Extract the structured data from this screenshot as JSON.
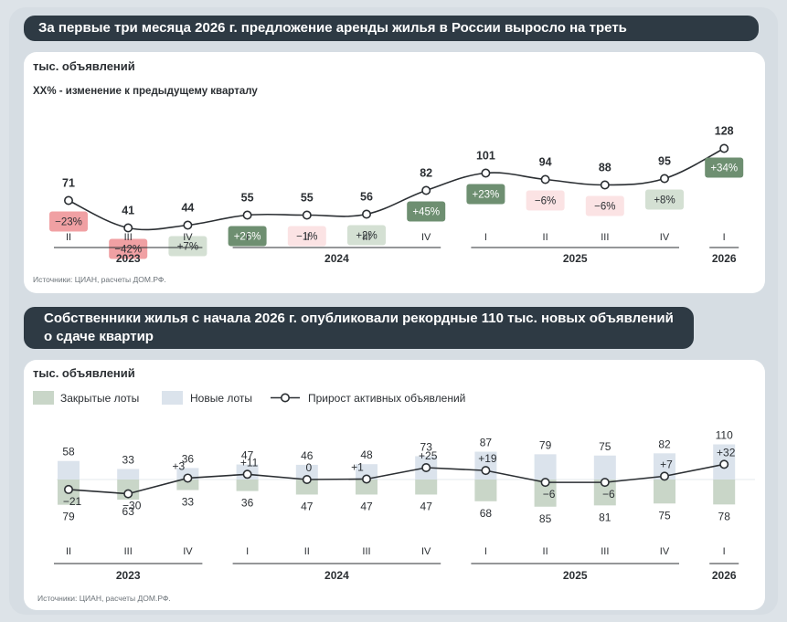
{
  "panel1": {
    "banner": "За первые три месяца 2026 г. предложение аренды жилья в России выросло на треть",
    "unit_label": "тыс. объявлений",
    "legend_note": "XX% - изменение к предыдущему кварталу",
    "source": "Источники: ЦИАН, расчеты ДОМ.РФ."
  },
  "panel2": {
    "banner_line1": "Собственники жилья с начала 2026 г. опубликовали рекордные 110 тыс. новых объявлений",
    "banner_line2": "о сдаче квартир",
    "unit_label": "тыс. объявлений",
    "source": "Источники: ЦИАН, расчеты ДОМ.РФ."
  },
  "colors": {
    "banner_bg": "#2e3a44",
    "line": "#2b2f33",
    "closed_lots": "#c9d6c8",
    "new_lots": "#dbe3ec",
    "pos_strong": "#6e8f71",
    "pos_light": "#d4e0d3",
    "neg_strong": "#f0a0a3",
    "neg_light": "#fbe3e4"
  },
  "chart_data": [
    {
      "type": "line",
      "quarters": [
        "II",
        "III",
        "IV",
        "I",
        "II",
        "III",
        "IV",
        "I",
        "II",
        "III",
        "IV",
        "I"
      ],
      "years": [
        {
          "label": "2023",
          "span": [
            0,
            2
          ]
        },
        {
          "label": "2024",
          "span": [
            3,
            6
          ]
        },
        {
          "label": "2025",
          "span": [
            7,
            10
          ]
        },
        {
          "label": "2026",
          "span": [
            11,
            11
          ]
        }
      ],
      "values": [
        71,
        41,
        44,
        55,
        55,
        56,
        82,
        101,
        94,
        88,
        95,
        128
      ],
      "changes": [
        "-23%",
        "-42%",
        "+7%",
        "+26%",
        "-1%",
        "+2%",
        "+45%",
        "+23%",
        "-6%",
        "-6%",
        "+8%",
        "+34%"
      ],
      "change_numeric": [
        -23,
        -42,
        7,
        26,
        -1,
        2,
        45,
        23,
        -6,
        -6,
        8,
        34
      ]
    },
    {
      "type": "bar",
      "quarters": [
        "II",
        "III",
        "IV",
        "I",
        "II",
        "III",
        "IV",
        "I",
        "II",
        "III",
        "IV",
        "I"
      ],
      "years": [
        {
          "label": "2023",
          "span": [
            0,
            2
          ]
        },
        {
          "label": "2024",
          "span": [
            3,
            6
          ]
        },
        {
          "label": "2025",
          "span": [
            7,
            10
          ]
        },
        {
          "label": "2026",
          "span": [
            11,
            11
          ]
        }
      ],
      "legend": [
        "Закрытые лоты",
        "Новые лоты",
        "Прирост активных объявлений"
      ],
      "series": [
        {
          "name": "Новые лоты",
          "values": [
            58,
            33,
            36,
            47,
            46,
            48,
            73,
            87,
            79,
            75,
            82,
            110
          ]
        },
        {
          "name": "Закрытые лоты",
          "values": [
            79,
            63,
            33,
            36,
            47,
            47,
            47,
            68,
            85,
            81,
            75,
            78
          ]
        },
        {
          "name": "Прирост активных объявлений",
          "values": [
            -21,
            -30,
            3,
            11,
            0,
            1,
            25,
            19,
            -6,
            -6,
            7,
            32
          ]
        }
      ],
      "growth_labels": [
        "-21",
        "-30",
        "+3",
        "+11",
        "0",
        "+1",
        "+25",
        "+19",
        "-6",
        "-6",
        "+7",
        "+32"
      ]
    }
  ]
}
